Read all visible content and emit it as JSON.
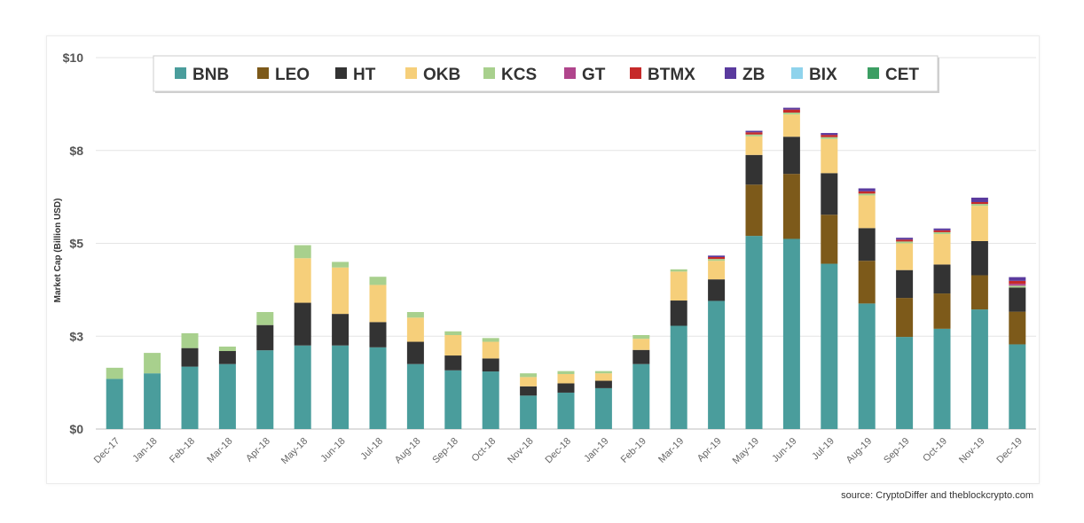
{
  "chart_data": {
    "type": "bar",
    "stacked": true,
    "ylabel": "Market Cap (Billion USD)",
    "ylim": [
      0,
      10
    ],
    "yticks": [
      0,
      2.5,
      5,
      7.5,
      10
    ],
    "ytick_labels": [
      "$0",
      "$3",
      "$5",
      "$8",
      "$10"
    ],
    "categories": [
      "Dec-17",
      "Jan-18",
      "Feb-18",
      "Mar-18",
      "Apr-18",
      "May-18",
      "Jun-18",
      "Jul-18",
      "Aug-18",
      "Sep-18",
      "Oct-18",
      "Nov-18",
      "Dec-18",
      "Jan-19",
      "Feb-19",
      "Mar-19",
      "Apr-19",
      "May-19",
      "Jun-19",
      "Jul-19",
      "Aug-19",
      "Sep-19",
      "Oct-19",
      "Nov-19",
      "Dec-19"
    ],
    "series": [
      {
        "name": "BNB",
        "color": "#4a9d9c",
        "values": [
          1.35,
          1.5,
          1.68,
          1.75,
          2.12,
          2.25,
          2.25,
          2.2,
          1.75,
          1.58,
          1.55,
          0.9,
          0.98,
          1.1,
          1.75,
          2.78,
          3.45,
          5.2,
          5.12,
          4.45,
          3.38,
          2.48,
          2.7,
          3.22,
          2.28
        ]
      },
      {
        "name": "LEO",
        "color": "#7d5a1a",
        "values": [
          0,
          0,
          0,
          0,
          0,
          0,
          0,
          0,
          0,
          0,
          0,
          0,
          0,
          0,
          0,
          0,
          0,
          1.38,
          1.75,
          1.32,
          1.15,
          1.05,
          0.95,
          0.92,
          0.88
        ]
      },
      {
        "name": "HT",
        "color": "#333333",
        "values": [
          0,
          0,
          0.5,
          0.35,
          0.68,
          1.15,
          0.85,
          0.68,
          0.6,
          0.4,
          0.35,
          0.25,
          0.25,
          0.2,
          0.38,
          0.68,
          0.58,
          0.8,
          1.0,
          1.12,
          0.88,
          0.75,
          0.78,
          0.92,
          0.65
        ]
      },
      {
        "name": "OKB",
        "color": "#f6cf7a",
        "values": [
          0,
          0,
          0,
          0,
          0,
          1.2,
          1.25,
          1.0,
          0.65,
          0.55,
          0.45,
          0.25,
          0.25,
          0.2,
          0.3,
          0.78,
          0.5,
          0.5,
          0.6,
          0.92,
          0.88,
          0.72,
          0.82,
          0.95,
          0
        ]
      },
      {
        "name": "KCS",
        "color": "#a8d08d",
        "values": [
          0.3,
          0.55,
          0.4,
          0.12,
          0.35,
          0.35,
          0.15,
          0.22,
          0.15,
          0.1,
          0.1,
          0.1,
          0.08,
          0.06,
          0.1,
          0.06,
          0.05,
          0.05,
          0.05,
          0.05,
          0.05,
          0.05,
          0.05,
          0.05,
          0.05
        ]
      },
      {
        "name": "GT",
        "color": "#b0458c",
        "values": [
          0,
          0,
          0,
          0,
          0,
          0,
          0,
          0,
          0,
          0,
          0,
          0,
          0,
          0,
          0,
          0,
          0,
          0,
          0,
          0,
          0,
          0,
          0,
          0,
          0.05
        ]
      },
      {
        "name": "BTMX",
        "color": "#c62a2a",
        "values": [
          0,
          0,
          0,
          0,
          0,
          0,
          0,
          0,
          0,
          0,
          0,
          0,
          0,
          0,
          0,
          0,
          0.05,
          0.06,
          0.08,
          0.06,
          0.06,
          0.05,
          0.05,
          0.05,
          0.08
        ]
      },
      {
        "name": "ZB",
        "color": "#5a3a9e",
        "values": [
          0,
          0,
          0,
          0,
          0,
          0,
          0,
          0,
          0,
          0,
          0,
          0,
          0,
          0,
          0,
          0,
          0.04,
          0.04,
          0.05,
          0.05,
          0.08,
          0.05,
          0.05,
          0.12,
          0.1
        ]
      },
      {
        "name": "BIX",
        "color": "#8fd3ec",
        "values": [
          0,
          0,
          0,
          0,
          0,
          0,
          0,
          0,
          0,
          0,
          0,
          0,
          0,
          0,
          0,
          0,
          0,
          0,
          0,
          0,
          0,
          0,
          0,
          0,
          0
        ]
      },
      {
        "name": "CET",
        "color": "#3c9e63",
        "values": [
          0,
          0,
          0,
          0,
          0,
          0,
          0,
          0,
          0,
          0,
          0,
          0,
          0,
          0,
          0,
          0,
          0,
          0,
          0,
          0,
          0,
          0,
          0,
          0,
          0
        ]
      }
    ],
    "legend_position": "top",
    "grid": true,
    "source": "source: CryptoDiffer and theblockcrypto.com"
  }
}
